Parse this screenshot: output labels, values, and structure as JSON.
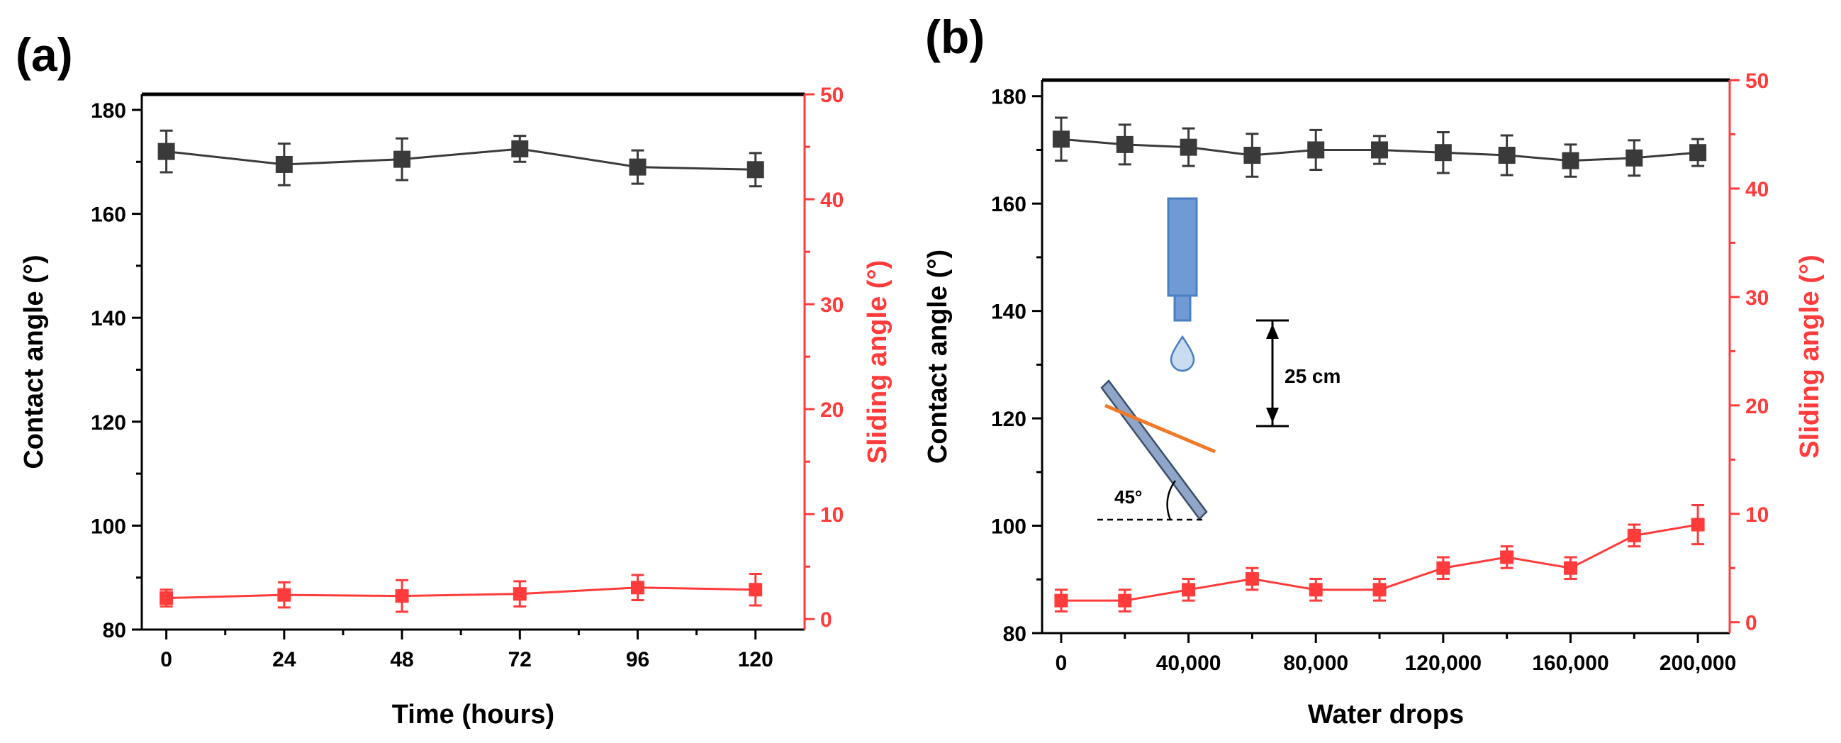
{
  "colors": {
    "black_series": "#3a3a3a",
    "red_series": "#ff3b3b",
    "axis": "#000000",
    "nozzle": "#4a7fc1",
    "nozzle_fill": "#6f9ad6",
    "drop_fill": "#c9dcf2",
    "plate_fill": "#8fa6c8",
    "coating": "#f07a2a"
  },
  "chart_data": [
    {
      "panel_label": "(a)",
      "type": "line",
      "xlabel": "Time (hours)",
      "ylabel": "Contact angle (°)",
      "y2label": "Sliding angle (°)",
      "x_ticks": [
        0,
        24,
        48,
        72,
        96,
        120
      ],
      "x_tick_labels": [
        "0",
        "24",
        "48",
        "72",
        "96",
        "120"
      ],
      "xlim": [
        -5,
        130
      ],
      "ylim": [
        80,
        183
      ],
      "y_ticks": [
        80,
        100,
        120,
        140,
        160,
        180
      ],
      "y_tick_labels": [
        "80",
        "100",
        "120",
        "140",
        "160",
        "180"
      ],
      "y2lim": [
        -1,
        50
      ],
      "y2_ticks": [
        0,
        10,
        20,
        30,
        40,
        50
      ],
      "y2_tick_labels": [
        "0",
        "10",
        "20",
        "30",
        "40",
        "50"
      ],
      "series": [
        {
          "name": "Contact angle",
          "axis": "left",
          "color": "#3a3a3a",
          "x": [
            0,
            24,
            48,
            72,
            96,
            120
          ],
          "values": [
            172,
            169.5,
            170.5,
            172.5,
            169,
            168.5
          ],
          "errors": [
            4,
            4,
            4,
            2.5,
            3.2,
            3.2
          ]
        },
        {
          "name": "Sliding angle",
          "axis": "right",
          "color": "#ff3b3b",
          "x": [
            0,
            24,
            48,
            72,
            96,
            120
          ],
          "values": [
            2,
            2.3,
            2.2,
            2.4,
            3,
            2.8
          ],
          "errors": [
            0.8,
            1.2,
            1.5,
            1.2,
            1.2,
            1.5
          ]
        }
      ]
    },
    {
      "panel_label": "(b)",
      "type": "line",
      "xlabel": "Water drops",
      "ylabel": "Contact angle (°)",
      "y2label": "Sliding angle (°)",
      "x_ticks": [
        0,
        40000,
        80000,
        120000,
        160000,
        200000
      ],
      "x_tick_labels": [
        "0",
        "40,000",
        "80,000",
        "120,000",
        "160,000",
        "200,000"
      ],
      "xlim": [
        -6000,
        210000
      ],
      "ylim": [
        80,
        183
      ],
      "y_ticks": [
        80,
        100,
        120,
        140,
        160,
        180
      ],
      "y_tick_labels": [
        "80",
        "100",
        "120",
        "140",
        "160",
        "180"
      ],
      "y2lim": [
        -1,
        50
      ],
      "y2_ticks": [
        0,
        10,
        20,
        30,
        40,
        50
      ],
      "y2_tick_labels": [
        "0",
        "10",
        "20",
        "30",
        "40",
        "50"
      ],
      "series": [
        {
          "name": "Contact angle",
          "axis": "left",
          "color": "#3a3a3a",
          "x": [
            0,
            20000,
            40000,
            60000,
            80000,
            100000,
            120000,
            140000,
            160000,
            180000,
            200000
          ],
          "values": [
            172,
            171,
            170.5,
            169,
            170,
            170,
            169.5,
            169,
            168,
            168.5,
            169.5
          ],
          "errors": [
            4,
            3.7,
            3.5,
            4,
            3.7,
            2.6,
            3.8,
            3.7,
            3,
            3.3,
            2.5
          ]
        },
        {
          "name": "Sliding angle",
          "axis": "right",
          "color": "#ff3b3b",
          "x": [
            0,
            20000,
            40000,
            60000,
            80000,
            100000,
            120000,
            140000,
            160000,
            180000,
            200000
          ],
          "values": [
            2,
            2,
            3,
            4,
            3,
            3,
            5,
            6,
            5,
            8,
            9
          ],
          "errors": [
            1,
            1,
            1,
            1,
            1,
            1,
            1,
            1,
            1,
            1,
            1.8
          ]
        }
      ],
      "inset": {
        "distance_label": "25 cm",
        "angle_label": "45°"
      }
    }
  ]
}
